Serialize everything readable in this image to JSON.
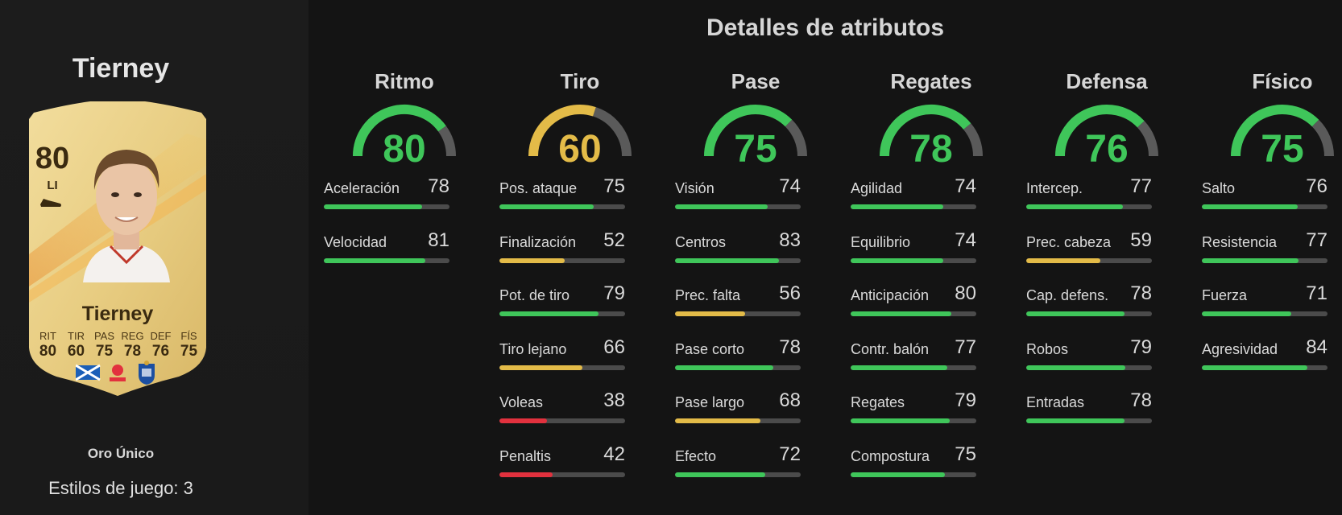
{
  "colors": {
    "green": "#3fc65a",
    "yellow": "#e3bb48",
    "red": "#e2313e",
    "track": "#4b4b4b",
    "gauge_track": "#5a5a5a",
    "card_gold": "#e9cf86"
  },
  "left": {
    "title": "Tierney",
    "card": {
      "rating": "80",
      "position": "LI",
      "name": "Tierney",
      "boot_icon": "boot-icon",
      "stats": [
        {
          "label": "RIT",
          "value": "80"
        },
        {
          "label": "TIR",
          "value": "60"
        },
        {
          "label": "PAS",
          "value": "75"
        },
        {
          "label": "REG",
          "value": "78"
        },
        {
          "label": "DEF",
          "value": "76"
        },
        {
          "label": "FÍS",
          "value": "75"
        }
      ],
      "nation_icon": "scotland-flag-icon",
      "league_icon": "laliga-icon",
      "club_icon": "real-sociedad-crest-icon"
    },
    "card_type": "Oro Único",
    "playstyles": "Estilos de juego: 3"
  },
  "main": {
    "title": "Detalles de atributos",
    "categories": [
      {
        "name": "Ritmo",
        "value": 80,
        "color": "#3fc65a",
        "stats": [
          {
            "label": "Aceleración",
            "value": 78,
            "color": "#3fc65a"
          },
          {
            "label": "Velocidad",
            "value": 81,
            "color": "#3fc65a"
          }
        ]
      },
      {
        "name": "Tiro",
        "value": 60,
        "color": "#e3bb48",
        "stats": [
          {
            "label": "Pos. ataque",
            "value": 75,
            "color": "#3fc65a"
          },
          {
            "label": "Finalización",
            "value": 52,
            "color": "#e3bb48"
          },
          {
            "label": "Pot. de tiro",
            "value": 79,
            "color": "#3fc65a"
          },
          {
            "label": "Tiro lejano",
            "value": 66,
            "color": "#e3bb48"
          },
          {
            "label": "Voleas",
            "value": 38,
            "color": "#e2313e"
          },
          {
            "label": "Penaltis",
            "value": 42,
            "color": "#e2313e"
          }
        ]
      },
      {
        "name": "Pase",
        "value": 75,
        "color": "#3fc65a",
        "stats": [
          {
            "label": "Visión",
            "value": 74,
            "color": "#3fc65a"
          },
          {
            "label": "Centros",
            "value": 83,
            "color": "#3fc65a"
          },
          {
            "label": "Prec. falta",
            "value": 56,
            "color": "#e3bb48"
          },
          {
            "label": "Pase corto",
            "value": 78,
            "color": "#3fc65a"
          },
          {
            "label": "Pase largo",
            "value": 68,
            "color": "#e3bb48"
          },
          {
            "label": "Efecto",
            "value": 72,
            "color": "#3fc65a"
          }
        ]
      },
      {
        "name": "Regates",
        "value": 78,
        "color": "#3fc65a",
        "stats": [
          {
            "label": "Agilidad",
            "value": 74,
            "color": "#3fc65a"
          },
          {
            "label": "Equilibrio",
            "value": 74,
            "color": "#3fc65a"
          },
          {
            "label": "Anticipación",
            "value": 80,
            "color": "#3fc65a"
          },
          {
            "label": "Contr. balón",
            "value": 77,
            "color": "#3fc65a"
          },
          {
            "label": "Regates",
            "value": 79,
            "color": "#3fc65a"
          },
          {
            "label": "Compostura",
            "value": 75,
            "color": "#3fc65a"
          }
        ]
      },
      {
        "name": "Defensa",
        "value": 76,
        "color": "#3fc65a",
        "stats": [
          {
            "label": "Intercep.",
            "value": 77,
            "color": "#3fc65a"
          },
          {
            "label": "Prec. cabeza",
            "value": 59,
            "color": "#e3bb48"
          },
          {
            "label": "Cap. defens.",
            "value": 78,
            "color": "#3fc65a"
          },
          {
            "label": "Robos",
            "value": 79,
            "color": "#3fc65a"
          },
          {
            "label": "Entradas",
            "value": 78,
            "color": "#3fc65a"
          }
        ]
      },
      {
        "name": "Físico",
        "value": 75,
        "color": "#3fc65a",
        "stats": [
          {
            "label": "Salto",
            "value": 76,
            "color": "#3fc65a"
          },
          {
            "label": "Resistencia",
            "value": 77,
            "color": "#3fc65a"
          },
          {
            "label": "Fuerza",
            "value": 71,
            "color": "#3fc65a"
          },
          {
            "label": "Agresividad",
            "value": 84,
            "color": "#3fc65a"
          }
        ]
      }
    ]
  }
}
